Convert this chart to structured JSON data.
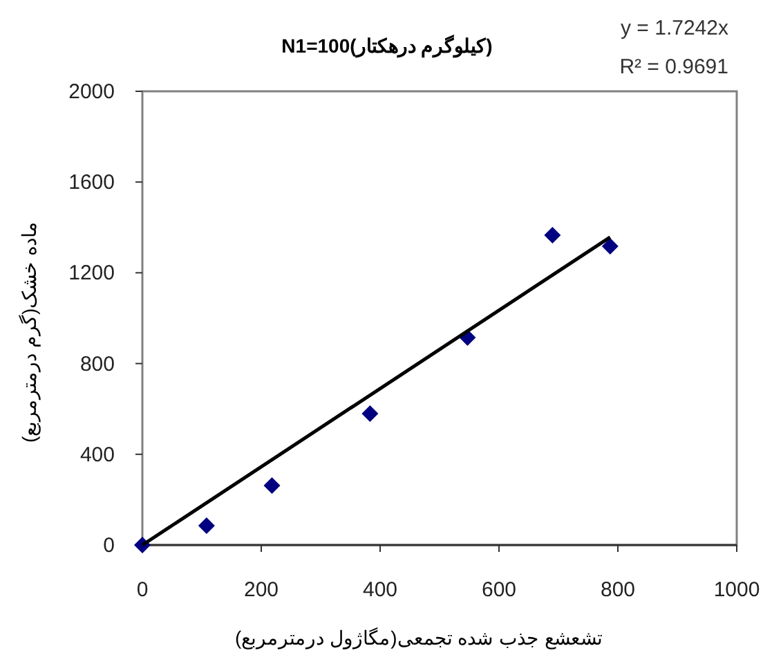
{
  "chart_data": {
    "type": "scatter",
    "title": "N1=100(کیلوگرم درهکتار)",
    "xlabel": "تشعشع جذب شده تجمعی(مگاژول درمترمربع)",
    "ylabel": "ماده خشک(گرم درمترمربع)",
    "annotations": [
      "y = 1.7242x",
      "R² = 0.9691"
    ],
    "xlim": [
      0,
      1000
    ],
    "xticks": [
      0,
      200,
      400,
      600,
      800,
      1000
    ],
    "ylim": [
      0,
      2000
    ],
    "yticks": [
      0,
      400,
      800,
      1200,
      1600,
      2000
    ],
    "grid": false,
    "marker": "diamond",
    "series": [
      {
        "color": "#000080",
        "x": [
          0,
          108,
          218,
          383,
          547,
          690,
          787
        ],
        "values": [
          0,
          85,
          262,
          579,
          915,
          1366,
          1317
        ]
      },
      {
        "type": "line",
        "color": "#000000",
        "marker": "none",
        "line_style": "solid",
        "x": [
          0,
          787
        ],
        "values": [
          0,
          1357
        ]
      }
    ]
  }
}
